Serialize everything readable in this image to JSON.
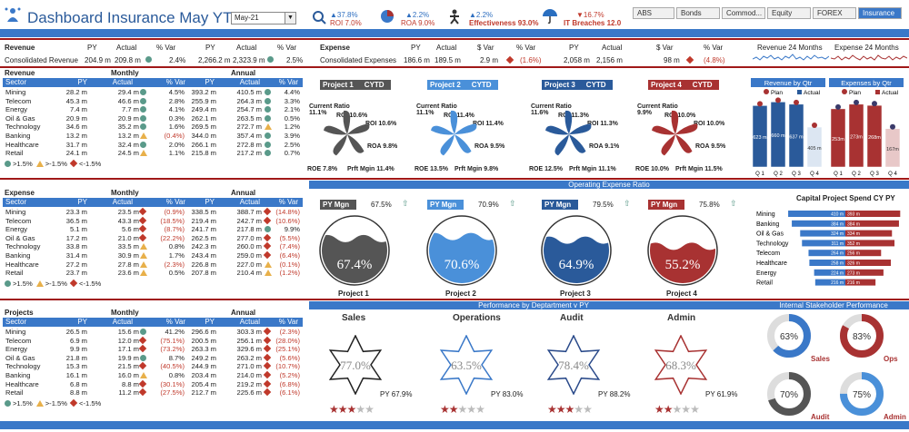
{
  "header": {
    "title": "Dashboard Insurance May YTD",
    "month": "May-21",
    "kpis": [
      {
        "pct": "▲37.8%",
        "label": "ROI 7.0%"
      },
      {
        "pct": "▲2.2%",
        "label": "ROA 9.0%"
      },
      {
        "pct": "▲2.2%",
        "label": "Effectiveness 93.0%"
      },
      {
        "pct": "▼16.7%",
        "label": "IT Breaches 12.0"
      }
    ],
    "buttons": [
      "ABS",
      "Bonds",
      "Commod...",
      "Equity",
      "FOREX",
      "Insurance"
    ]
  },
  "summary": {
    "revenue": {
      "title": "Revenue",
      "row": "Consolidated Revenue",
      "py": "204.9 m",
      "actual": "209.8 m",
      "var": "2.4%",
      "py2": "2,266.2 m",
      "actual2": "2,323.9 m",
      "var2": "2.5%"
    },
    "expense": {
      "title": "Expense",
      "row": "Consolidated Expenses",
      "py": "186.6 m",
      "actual": "189.5 m",
      "svar": "2.9 m",
      "var": "(1.6%)",
      "py2": "2,058 m",
      "actual2": "2,156 m",
      "svar2": "98 m",
      "var2": "(4.8%)"
    },
    "spark1": "Revenue 24 Months",
    "spark2": "Expense 24 Months",
    "cols": {
      "py": "PY",
      "actual": "Actual",
      "pvar": "% Var",
      "svar": "$ Var"
    }
  },
  "sections": [
    {
      "title": "Revenue",
      "band": "",
      "rows": [
        [
          "Mining",
          "28.2 m",
          "29.4 m",
          "d",
          "4.5%",
          "393.2 m",
          "410.5 m",
          "d",
          "4.4%"
        ],
        [
          "Telecom",
          "45.3 m",
          "46.6 m",
          "d",
          "2.8%",
          "255.9 m",
          "264.3 m",
          "d",
          "3.3%"
        ],
        [
          "Energy",
          "7.4 m",
          "7.7 m",
          "d",
          "4.1%",
          "249.4 m",
          "254.7 m",
          "d",
          "2.1%"
        ],
        [
          "Oil & Gas",
          "20.9 m",
          "20.9 m",
          "d",
          "0.3%",
          "262.1 m",
          "263.5 m",
          "d",
          "0.5%"
        ],
        [
          "Technology",
          "34.6 m",
          "35.2 m",
          "d",
          "1.6%",
          "269.5 m",
          "272.7 m",
          "t",
          "1.2%"
        ],
        [
          "Banking",
          "13.2 m",
          "13.2 m",
          "t",
          "(0.4%)",
          "344.0 m",
          "357.4 m",
          "d",
          "3.9%"
        ],
        [
          "Healthcare",
          "31.7 m",
          "32.4 m",
          "d",
          "2.0%",
          "266.1 m",
          "272.8 m",
          "d",
          "2.5%"
        ],
        [
          "Retail",
          "24.1 m",
          "24.5 m",
          "t",
          "1.1%",
          "215.8 m",
          "217.2 m",
          "d",
          "0.7%"
        ]
      ]
    },
    {
      "title": "Expense",
      "band": "Operating Expense Ratio",
      "rows": [
        [
          "Mining",
          "23.3 m",
          "23.5 m",
          "r",
          "(0.9%)",
          "338.5 m",
          "388.7 m",
          "r",
          "(14.8%)"
        ],
        [
          "Telecom",
          "36.5 m",
          "43.3 m",
          "r",
          "(18.5%)",
          "219.4 m",
          "242.7 m",
          "r",
          "(10.6%)"
        ],
        [
          "Energy",
          "5.1 m",
          "5.6 m",
          "r",
          "(8.7%)",
          "241.7 m",
          "217.8 m",
          "d",
          "9.9%"
        ],
        [
          "Oil & Gas",
          "17.2 m",
          "21.0 m",
          "r",
          "(22.2%)",
          "262.5 m",
          "277.0 m",
          "r",
          "(5.5%)"
        ],
        [
          "Technology",
          "33.8 m",
          "33.5 m",
          "t",
          "0.8%",
          "242.3 m",
          "260.0 m",
          "r",
          "(7.4%)"
        ],
        [
          "Banking",
          "31.4 m",
          "30.9 m",
          "t",
          "1.7%",
          "243.4 m",
          "259.0 m",
          "r",
          "(6.4%)"
        ],
        [
          "Healthcare",
          "27.2 m",
          "27.8 m",
          "t",
          "(2.3%)",
          "226.8 m",
          "227.0 m",
          "t",
          "(0.1%)"
        ],
        [
          "Retail",
          "23.7 m",
          "23.6 m",
          "t",
          "0.5%",
          "207.8 m",
          "210.4 m",
          "t",
          "(1.2%)"
        ]
      ]
    },
    {
      "title": "Projects",
      "band": "Performance by Deptartment v PY",
      "rows": [
        [
          "Mining",
          "26.5 m",
          "15.6 m",
          "d",
          "41.2%",
          "296.6 m",
          "303.3 m",
          "r",
          "(2.3%)"
        ],
        [
          "Telecom",
          "6.9 m",
          "12.0 m",
          "r",
          "(75.1%)",
          "200.5 m",
          "256.1 m",
          "r",
          "(28.0%)"
        ],
        [
          "Energy",
          "9.9 m",
          "17.1 m",
          "r",
          "(73.2%)",
          "263.3 m",
          "329.6 m",
          "r",
          "(25.1%)"
        ],
        [
          "Oil & Gas",
          "21.8 m",
          "19.9 m",
          "d",
          "8.7%",
          "249.2 m",
          "263.2 m",
          "r",
          "(5.6%)"
        ],
        [
          "Technology",
          "15.3 m",
          "21.5 m",
          "r",
          "(40.5%)",
          "244.9 m",
          "271.0 m",
          "r",
          "(10.7%)"
        ],
        [
          "Banking",
          "16.1 m",
          "16.0 m",
          "t",
          "0.8%",
          "203.4 m",
          "214.0 m",
          "r",
          "(5.2%)"
        ],
        [
          "Healthcare",
          "6.8 m",
          "8.8 m",
          "r",
          "(30.1%)",
          "205.4 m",
          "219.2 m",
          "r",
          "(6.8%)"
        ],
        [
          "Retail",
          "8.8 m",
          "11.2 m",
          "r",
          "(27.5%)",
          "212.7 m",
          "225.6 m",
          "r",
          "(6.1%)"
        ]
      ]
    }
  ],
  "tablecols": {
    "sector": "Sector",
    "monthly": "Monthly",
    "annual": "Annual",
    "py": "PY",
    "actual": "Actual",
    "var": "% Var"
  },
  "legend": {
    "a": ">1.5%",
    "b": ">-1.5%",
    "c": "<-1.5%"
  },
  "projects": [
    {
      "name": "Project 1",
      "cytd": "CYTD",
      "color": "#555555",
      "cr": "Current Ratio 11.1%",
      "roi": "ROI 10.6%",
      "roa": "ROA 9.8%",
      "roe": "ROE 7.8%",
      "prft": "Prft Mgin 11.4%",
      "pymgn": "PY Mgn",
      "pyval": "67.5%",
      "pct": "67.4%",
      "label": "Project 1"
    },
    {
      "name": "Project 2",
      "cytd": "CYTD",
      "color": "#4a90d9",
      "cr": "Current Ratio 11.1%",
      "roi": "ROI 11.4%",
      "roa": "ROA 9.5%",
      "roe": "ROE 13.5%",
      "prft": "Prft Mgin 9.8%",
      "pymgn": "PY Mgn",
      "pyval": "70.9%",
      "pct": "70.6%",
      "label": "Project 2"
    },
    {
      "name": "Project 3",
      "cytd": "CYTD",
      "color": "#2a5a9a",
      "cr": "Current Ratio 11.6%",
      "roi": "ROI 11.3%",
      "roa": "ROA 9.1%",
      "roe": "ROE 12.5%",
      "prft": "Prft Mgin 11.1%",
      "pymgn": "PY Mgn",
      "pyval": "79.5%",
      "pct": "64.9%",
      "label": "Project 3"
    },
    {
      "name": "Project 4",
      "cytd": "CYTD",
      "color": "#a83232",
      "cr": "Current Ratio 9.9%",
      "roi": "ROI 10.0%",
      "roa": "ROA 9.5%",
      "roe": "ROE 10.0%",
      "prft": "Prft Mgin 11.5%",
      "pymgn": "PY Mgn",
      "pyval": "75.8%",
      "pct": "55.2%",
      "label": "Project 4"
    }
  ],
  "depts": [
    {
      "name": "Sales",
      "pct": "77.0%",
      "py": "PY 67.9%",
      "color": "#222222",
      "stars": 3
    },
    {
      "name": "Operations",
      "pct": "63.5%",
      "py": "PY 83.0%",
      "color": "#3a78c8",
      "stars": 2
    },
    {
      "name": "Audit",
      "pct": "78.4%",
      "py": "PY 88.2%",
      "color": "#2a4a8a",
      "stars": 3
    },
    {
      "name": "Admin",
      "pct": "68.3%",
      "py": "PY 61.9%",
      "color": "#a83232",
      "stars": 2
    }
  ],
  "chart_data": [
    {
      "type": "bar",
      "title": "Revenue by Qtr",
      "legend": [
        "Plan",
        "Actual"
      ],
      "categories": [
        "Q 1",
        "Q 2",
        "Q 3",
        "Q 4"
      ],
      "values": [
        623,
        660,
        637,
        405
      ],
      "labels": [
        "623 m",
        "660 m",
        "637 m",
        "405 m"
      ]
    },
    {
      "type": "bar",
      "title": "Expenses by Qtr",
      "legend": [
        "Plan",
        "Actual"
      ],
      "categories": [
        "Q 1",
        "Q 2",
        "Q 3",
        "Q 4"
      ],
      "values": [
        253,
        273,
        268,
        167
      ],
      "labels": [
        "253m",
        "273m",
        "268m",
        "167m"
      ]
    },
    {
      "type": "bar",
      "title": "Capital Project Spend CY PY",
      "categories": [
        "Mining",
        "Banking",
        "Oil & Gas",
        "Technology",
        "Telecom",
        "Healthcare",
        "Energy",
        "Retail"
      ],
      "cy": [
        410,
        384,
        324,
        311,
        264,
        258,
        224,
        216
      ],
      "py": [
        393,
        384,
        334,
        352,
        256,
        326,
        273,
        216
      ],
      "cy_labels": [
        "410 m",
        "384 m",
        "324 m",
        "311 m",
        "264 m",
        "258 m",
        "224 m",
        "216 m"
      ],
      "py_labels": [
        "393 m",
        "384 m",
        "334 m",
        "352 m",
        "256 m",
        "326 m",
        "273 m",
        "216 m"
      ]
    }
  ],
  "stakeholder": {
    "title": "Internal Stakeholder Performance",
    "items": [
      {
        "name": "Sales",
        "pct": "63%",
        "value": 63,
        "color": "#3a78c8"
      },
      {
        "name": "Ops",
        "pct": "83%",
        "value": 83,
        "color": "#a83232"
      },
      {
        "name": "Audit",
        "pct": "70%",
        "value": 70,
        "color": "#555555"
      },
      {
        "name": "Admin",
        "pct": "75%",
        "value": 75,
        "color": "#4a90d9"
      }
    ]
  }
}
